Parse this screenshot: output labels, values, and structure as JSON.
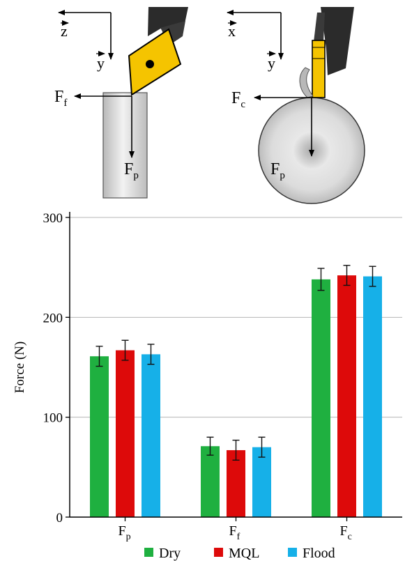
{
  "diagrams": {
    "left": {
      "axis_h": "z",
      "axis_v": "y",
      "force_h": {
        "base": "F",
        "sub": "f"
      },
      "force_v": {
        "base": "F",
        "sub": "p"
      }
    },
    "right": {
      "axis_h": "x",
      "axis_v": "y",
      "force_h": {
        "base": "F",
        "sub": "c"
      },
      "force_v": {
        "base": "F",
        "sub": "p"
      }
    }
  },
  "colors": {
    "dry": "#1fb040",
    "mql": "#dd0a0a",
    "flood": "#16b0e8",
    "insert": "#f5c400",
    "holder": "#2b2b2b"
  },
  "chart_data": {
    "type": "bar",
    "ylabel": "Force (N)",
    "ylim": [
      0,
      300
    ],
    "yticks": [
      0,
      100,
      200,
      300
    ],
    "grid": true,
    "legend_position": "bottom",
    "categories": [
      {
        "base": "F",
        "sub": "p"
      },
      {
        "base": "F",
        "sub": "f"
      },
      {
        "base": "F",
        "sub": "c"
      }
    ],
    "series": [
      {
        "name": "Dry",
        "color": "#1fb040",
        "values": [
          161,
          71,
          238
        ],
        "errors": [
          10,
          9,
          11
        ]
      },
      {
        "name": "MQL",
        "color": "#dd0a0a",
        "values": [
          167,
          67,
          242
        ],
        "errors": [
          10,
          10,
          10
        ]
      },
      {
        "name": "Flood",
        "color": "#16b0e8",
        "values": [
          163,
          70,
          241
        ],
        "errors": [
          10,
          10,
          10
        ]
      }
    ]
  }
}
